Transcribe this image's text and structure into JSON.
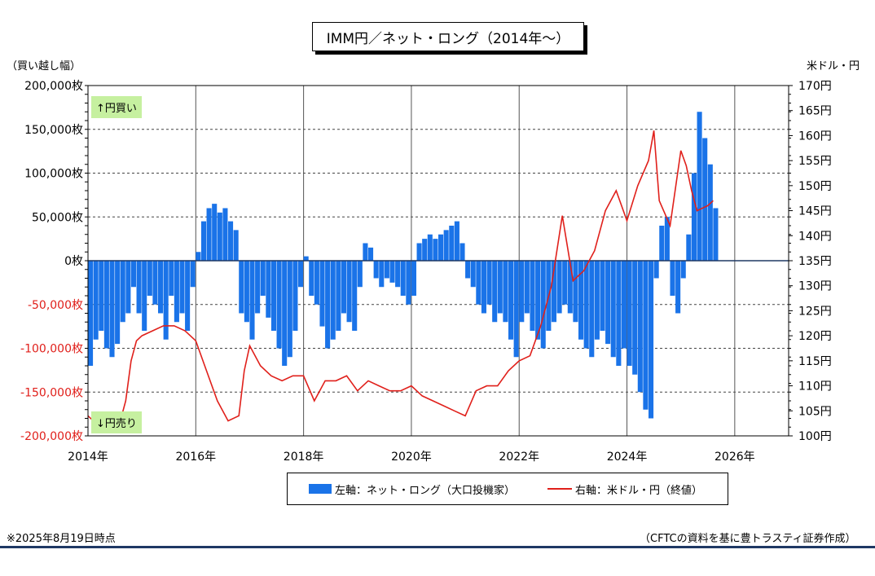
{
  "title": "IMM円／ネット・ロング（2014年～）",
  "left_axis_title": "（買い越し幅）",
  "right_axis_title": "米ドル・円",
  "buy_label": "↑円買い",
  "sell_label": "↓円売り",
  "legend": {
    "bars": "左軸：ネット・ロング（大口投機家）",
    "line": "右軸：米ドル・円（終値）"
  },
  "note_left": "※2025年8月19日時点",
  "note_right": "（CFTCの資料を基に豊トラスティ証券作成）",
  "colors": {
    "bars": "#1a73e8",
    "line": "#e0201b",
    "neg_tick": "#e0201b"
  },
  "chart_data": {
    "type": "bar+line",
    "x_ticks": [
      "2014年",
      "2016年",
      "2018年",
      "2020年",
      "2022年",
      "2024年",
      "2026年"
    ],
    "left_ticks": [
      "200,000枚",
      "150,000枚",
      "100,000枚",
      "50,000枚",
      "0枚",
      "-50,000枚",
      "-100,000枚",
      "-150,000枚",
      "-200,000枚"
    ],
    "right_ticks": [
      "170円",
      "165円",
      "160円",
      "155円",
      "150円",
      "145円",
      "140円",
      "135円",
      "130円",
      "125円",
      "120円",
      "115円",
      "110円",
      "105円",
      "100円"
    ],
    "x_range": [
      2014.0,
      2027.0
    ],
    "left_range": [
      -200000,
      200000
    ],
    "right_range": [
      100,
      170
    ],
    "series": [
      {
        "name": "ネット・ロング（大口投機家）",
        "axis": "left",
        "type": "bar",
        "x": [
          2014.0,
          2014.1,
          2014.2,
          2014.3,
          2014.4,
          2014.5,
          2014.6,
          2014.7,
          2014.8,
          2014.9,
          2015.0,
          2015.1,
          2015.2,
          2015.3,
          2015.4,
          2015.5,
          2015.6,
          2015.7,
          2015.8,
          2015.9,
          2016.0,
          2016.1,
          2016.2,
          2016.3,
          2016.4,
          2016.5,
          2016.6,
          2016.7,
          2016.8,
          2016.9,
          2017.0,
          2017.1,
          2017.2,
          2017.3,
          2017.4,
          2017.5,
          2017.6,
          2017.7,
          2017.8,
          2017.9,
          2018.0,
          2018.1,
          2018.2,
          2018.3,
          2018.4,
          2018.5,
          2018.6,
          2018.7,
          2018.8,
          2018.9,
          2019.0,
          2019.1,
          2019.2,
          2019.3,
          2019.4,
          2019.5,
          2019.6,
          2019.7,
          2019.8,
          2019.9,
          2020.0,
          2020.1,
          2020.2,
          2020.3,
          2020.4,
          2020.5,
          2020.6,
          2020.7,
          2020.8,
          2020.9,
          2021.0,
          2021.1,
          2021.2,
          2021.3,
          2021.4,
          2021.5,
          2021.6,
          2021.7,
          2021.8,
          2021.9,
          2022.0,
          2022.1,
          2022.2,
          2022.3,
          2022.4,
          2022.5,
          2022.6,
          2022.7,
          2022.8,
          2022.9,
          2023.0,
          2023.1,
          2023.2,
          2023.3,
          2023.4,
          2023.5,
          2023.6,
          2023.7,
          2023.8,
          2023.9,
          2024.0,
          2024.1,
          2024.2,
          2024.3,
          2024.4,
          2024.5,
          2024.6,
          2024.7,
          2024.8,
          2024.9,
          2025.0,
          2025.1,
          2025.2,
          2025.3,
          2025.4,
          2025.5,
          2025.6
        ],
        "values": [
          -120000,
          -90000,
          -80000,
          -100000,
          -110000,
          -95000,
          -70000,
          -60000,
          -30000,
          -60000,
          -80000,
          -40000,
          -50000,
          -60000,
          -90000,
          -40000,
          -70000,
          -60000,
          -80000,
          -30000,
          10000,
          45000,
          60000,
          65000,
          55000,
          60000,
          45000,
          35000,
          -60000,
          -70000,
          -90000,
          -60000,
          -40000,
          -65000,
          -80000,
          -100000,
          -120000,
          -110000,
          -80000,
          -30000,
          5000,
          -40000,
          -50000,
          -75000,
          -100000,
          -90000,
          -80000,
          -60000,
          -70000,
          -80000,
          -30000,
          20000,
          15000,
          -20000,
          -30000,
          -20000,
          -25000,
          -30000,
          -40000,
          -50000,
          -40000,
          20000,
          25000,
          30000,
          25000,
          30000,
          35000,
          40000,
          45000,
          20000,
          -20000,
          -30000,
          -50000,
          -60000,
          -50000,
          -70000,
          -60000,
          -70000,
          -90000,
          -110000,
          -70000,
          -60000,
          -80000,
          -90000,
          -100000,
          -80000,
          -70000,
          -60000,
          -50000,
          -60000,
          -70000,
          -90000,
          -100000,
          -110000,
          -90000,
          -80000,
          -95000,
          -110000,
          -120000,
          -100000,
          -120000,
          -130000,
          -150000,
          -170000,
          -180000,
          -20000,
          40000,
          50000,
          -40000,
          -60000,
          -20000,
          30000,
          100000,
          170000,
          140000,
          110000,
          60000
        ]
      },
      {
        "name": "米ドル・円（終値）",
        "axis": "right",
        "type": "line",
        "x": [
          2014.0,
          2014.2,
          2014.4,
          2014.6,
          2014.7,
          2014.8,
          2014.9,
          2015.0,
          2015.2,
          2015.4,
          2015.6,
          2015.8,
          2016.0,
          2016.2,
          2016.4,
          2016.6,
          2016.8,
          2016.9,
          2017.0,
          2017.2,
          2017.4,
          2017.6,
          2017.8,
          2018.0,
          2018.2,
          2018.4,
          2018.6,
          2018.8,
          2019.0,
          2019.2,
          2019.4,
          2019.6,
          2019.8,
          2020.0,
          2020.2,
          2020.4,
          2020.6,
          2020.8,
          2021.0,
          2021.2,
          2021.4,
          2021.6,
          2021.8,
          2022.0,
          2022.2,
          2022.4,
          2022.6,
          2022.8,
          2023.0,
          2023.2,
          2023.4,
          2023.6,
          2023.8,
          2024.0,
          2024.2,
          2024.4,
          2024.5,
          2024.6,
          2024.8,
          2025.0,
          2025.1,
          2025.2,
          2025.3,
          2025.5,
          2025.6
        ],
        "values": [
          104,
          102,
          102,
          103,
          107,
          115,
          119,
          120,
          121,
          122,
          122,
          121,
          119,
          113,
          107,
          103,
          104,
          113,
          118,
          114,
          112,
          111,
          112,
          112,
          107,
          111,
          111,
          112,
          109,
          111,
          110,
          109,
          109,
          110,
          108,
          107,
          106,
          105,
          104,
          109,
          110,
          110,
          113,
          115,
          116,
          122,
          130,
          144,
          131,
          133,
          137,
          145,
          149,
          143,
          150,
          155,
          161,
          147,
          142,
          157,
          154,
          149,
          145,
          146,
          147
        ]
      }
    ]
  }
}
